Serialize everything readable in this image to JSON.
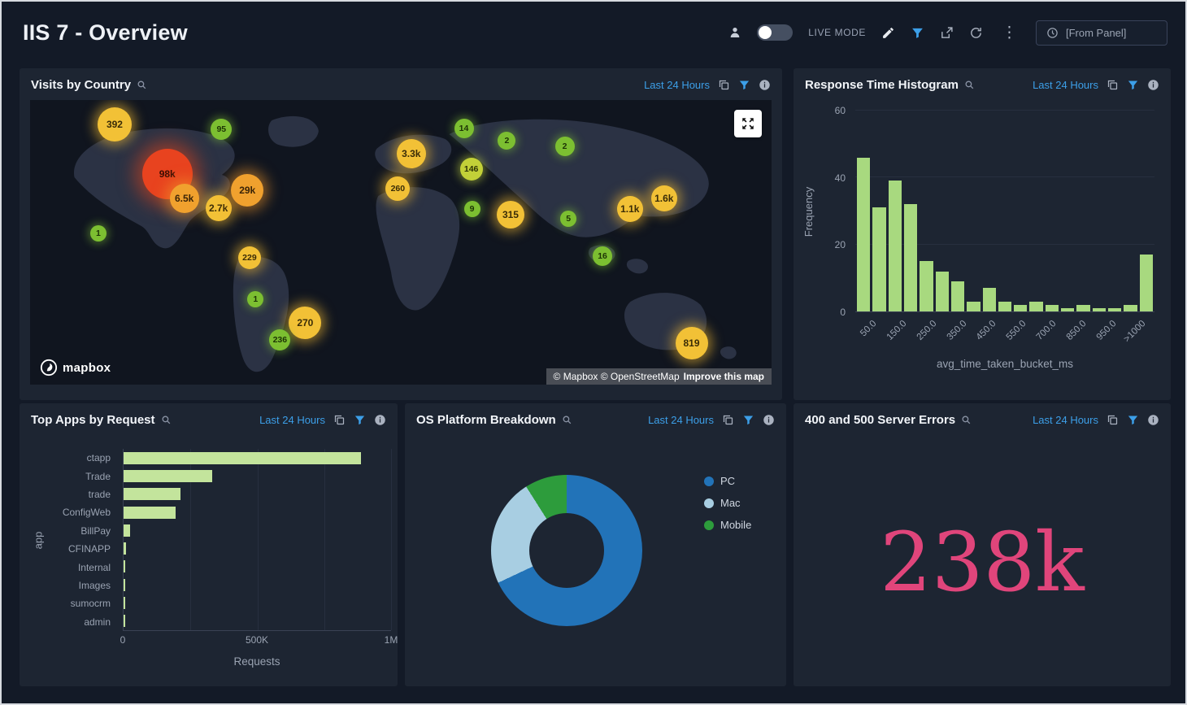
{
  "header": {
    "title": "IIS 7 - Overview",
    "live_mode": "LIVE MODE",
    "from_panel": "[From Panel]"
  },
  "colors": {
    "accent_blue": "#3c9fe8",
    "histogram_green": "#a8d97f",
    "bar_green": "#c3e49c",
    "error_pink": "#e0457b",
    "donut_pc": "#2273b8",
    "donut_mac": "#a8cee2",
    "donut_mobile": "#2d9c3c"
  },
  "panels": {
    "visits": {
      "title": "Visits by Country",
      "time_range": "Last 24 Hours",
      "logo": "mapbox",
      "attribution": "© Mapbox © OpenStreetMap",
      "improve_link": "Improve this map"
    },
    "response": {
      "title": "Response Time Histogram",
      "time_range": "Last 24 Hours"
    },
    "top_apps": {
      "title": "Top Apps by Request",
      "time_range": "Last 24 Hours"
    },
    "os": {
      "title": "OS Platform Breakdown",
      "time_range": "Last 24 Hours"
    },
    "errors": {
      "title": "400 and 500 Server Errors",
      "time_range": "Last 24 Hours",
      "value": "238k"
    }
  },
  "chart_data": [
    {
      "id": "visits_map",
      "type": "map",
      "title": "Visits by Country",
      "points": [
        {
          "label": "392",
          "value": 392,
          "color": "yellow",
          "x": 11.4,
          "y": 8.6,
          "r": 21
        },
        {
          "label": "95",
          "value": 95,
          "color": "green",
          "x": 25.8,
          "y": 10.3,
          "r": 13
        },
        {
          "label": "98k",
          "value": 98000,
          "color": "red",
          "x": 18.5,
          "y": 26.0,
          "r": 31
        },
        {
          "label": "6.5k",
          "value": 6500,
          "color": "orange",
          "x": 20.8,
          "y": 34.6,
          "r": 18
        },
        {
          "label": "2.7k",
          "value": 2700,
          "color": "yellow",
          "x": 25.4,
          "y": 38.0,
          "r": 16
        },
        {
          "label": "29k",
          "value": 29000,
          "color": "orange",
          "x": 29.3,
          "y": 31.7,
          "r": 20
        },
        {
          "label": "3.3k",
          "value": 3300,
          "color": "yellow",
          "x": 51.4,
          "y": 18.9,
          "r": 18
        },
        {
          "label": "260",
          "value": 260,
          "color": "yellow",
          "x": 49.6,
          "y": 31.1,
          "r": 15
        },
        {
          "label": "146",
          "value": 146,
          "color": "lime",
          "x": 59.5,
          "y": 24.3,
          "r": 14
        },
        {
          "label": "14",
          "value": 14,
          "color": "green",
          "x": 58.5,
          "y": 10.0,
          "r": 12
        },
        {
          "label": "2",
          "value": 2,
          "color": "green",
          "x": 64.3,
          "y": 14.3,
          "r": 11
        },
        {
          "label": "2",
          "value": 2,
          "color": "green",
          "x": 72.1,
          "y": 16.3,
          "r": 12
        },
        {
          "label": "9",
          "value": 9,
          "color": "green",
          "x": 59.6,
          "y": 38.3,
          "r": 10
        },
        {
          "label": "315",
          "value": 315,
          "color": "yellow",
          "x": 64.8,
          "y": 40.3,
          "r": 17
        },
        {
          "label": "5",
          "value": 5,
          "color": "green",
          "x": 72.6,
          "y": 41.7,
          "r": 10
        },
        {
          "label": "1.1k",
          "value": 1100,
          "color": "yellow",
          "x": 80.9,
          "y": 38.3,
          "r": 16
        },
        {
          "label": "1.6k",
          "value": 1600,
          "color": "yellow",
          "x": 85.5,
          "y": 34.6,
          "r": 16
        },
        {
          "label": "16",
          "value": 16,
          "color": "green",
          "x": 77.2,
          "y": 54.9,
          "r": 12
        },
        {
          "label": "229",
          "value": 229,
          "color": "yellow",
          "x": 29.6,
          "y": 55.4,
          "r": 14
        },
        {
          "label": "1",
          "value": 1,
          "color": "green",
          "x": 9.2,
          "y": 46.9,
          "r": 10
        },
        {
          "label": "1",
          "value": 1,
          "color": "green",
          "x": 30.4,
          "y": 70.0,
          "r": 10
        },
        {
          "label": "270",
          "value": 270,
          "color": "yellow",
          "x": 37.1,
          "y": 78.3,
          "r": 20
        },
        {
          "label": "236",
          "value": 236,
          "color": "green",
          "x": 33.7,
          "y": 84.3,
          "r": 13
        },
        {
          "label": "819",
          "value": 819,
          "color": "yellow",
          "x": 89.2,
          "y": 85.4,
          "r": 20
        }
      ]
    },
    {
      "id": "response_histogram",
      "type": "bar",
      "title": "Response Time Histogram",
      "xlabel": "avg_time_taken_bucket_ms",
      "ylabel": "Frequency",
      "ylim": [
        0,
        60
      ],
      "yticks": [
        0,
        20,
        40,
        60
      ],
      "xticks": [
        "50.0",
        "150.0",
        "250.0",
        "350.0",
        "450.0",
        "550.0",
        "700.0",
        "850.0",
        "950.0",
        ">1000"
      ],
      "values": [
        46,
        31,
        39,
        32,
        15,
        12,
        9,
        3,
        7,
        3,
        2,
        3,
        2,
        1,
        2,
        1,
        1,
        2,
        17
      ]
    },
    {
      "id": "top_apps",
      "type": "bar",
      "orientation": "horizontal",
      "title": "Top Apps by Request",
      "categories": [
        "ctapp",
        "Trade",
        "trade",
        "ConfigWeb",
        "BillPay",
        "CFINAPP",
        "Internal",
        "Images",
        "sumocrm",
        "admin"
      ],
      "values": [
        888000,
        330000,
        212000,
        194000,
        24000,
        9000,
        7000,
        7000,
        6000,
        5000
      ],
      "xlabel": "Requests",
      "ylabel": "app",
      "xlim": [
        0,
        1000000
      ],
      "xticks": [
        {
          "value": 0,
          "label": "0"
        },
        {
          "value": 500000,
          "label": "500K"
        },
        {
          "value": 1000000,
          "label": "1M"
        }
      ]
    },
    {
      "id": "os_donut",
      "type": "pie",
      "title": "OS Platform Breakdown",
      "series": [
        {
          "name": "PC",
          "percent": 68,
          "color": "#2273b8"
        },
        {
          "name": "Mac",
          "percent": 23,
          "color": "#a8cee2"
        },
        {
          "name": "Mobile",
          "percent": 9,
          "color": "#2d9c3c"
        }
      ],
      "legend_position": "right"
    },
    {
      "id": "server_errors",
      "type": "single_value",
      "title": "400 and 500 Server Errors",
      "value": "238k"
    }
  ]
}
